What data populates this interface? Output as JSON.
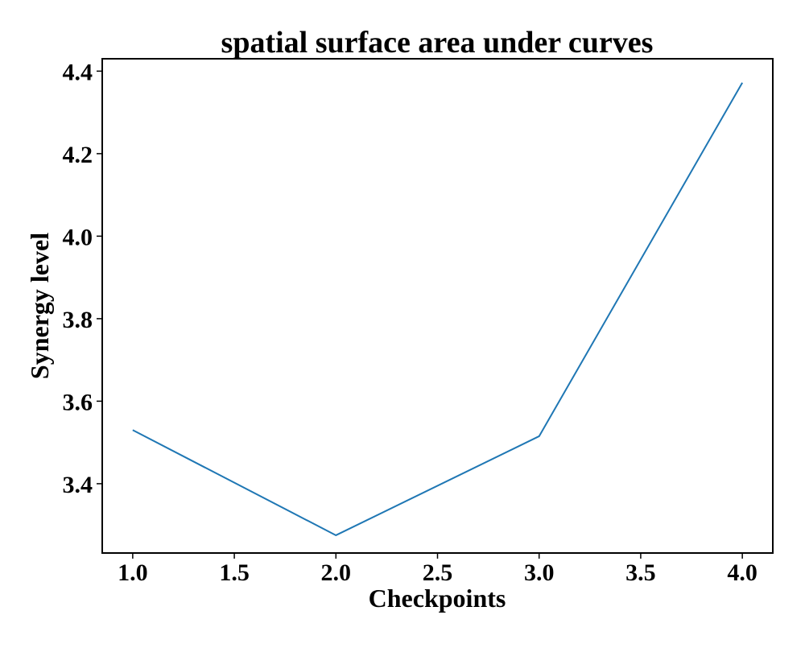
{
  "chart_data": {
    "type": "line",
    "title": "spatial surface area under curves",
    "xlabel": "Checkpoints",
    "ylabel": "Synergy level",
    "x": [
      1.0,
      2.0,
      3.0,
      4.0
    ],
    "series": [
      {
        "values": [
          3.53,
          3.275,
          3.515,
          4.372
        ],
        "color": "#1f77b4"
      }
    ],
    "xlim": [
      0.85,
      4.15
    ],
    "ylim": [
      3.232,
      4.43
    ],
    "xticks": [
      1.0,
      1.5,
      2.0,
      2.5,
      3.0,
      3.5,
      4.0
    ],
    "xtick_labels": [
      "1.0",
      "1.5",
      "2.0",
      "2.5",
      "3.0",
      "3.5",
      "4.0"
    ],
    "yticks": [
      3.4,
      3.6,
      3.8,
      4.0,
      4.2,
      4.4
    ],
    "ytick_labels": [
      "3.4",
      "3.6",
      "3.8",
      "4.0",
      "4.2",
      "4.4"
    ],
    "grid": false,
    "legend": "none"
  }
}
